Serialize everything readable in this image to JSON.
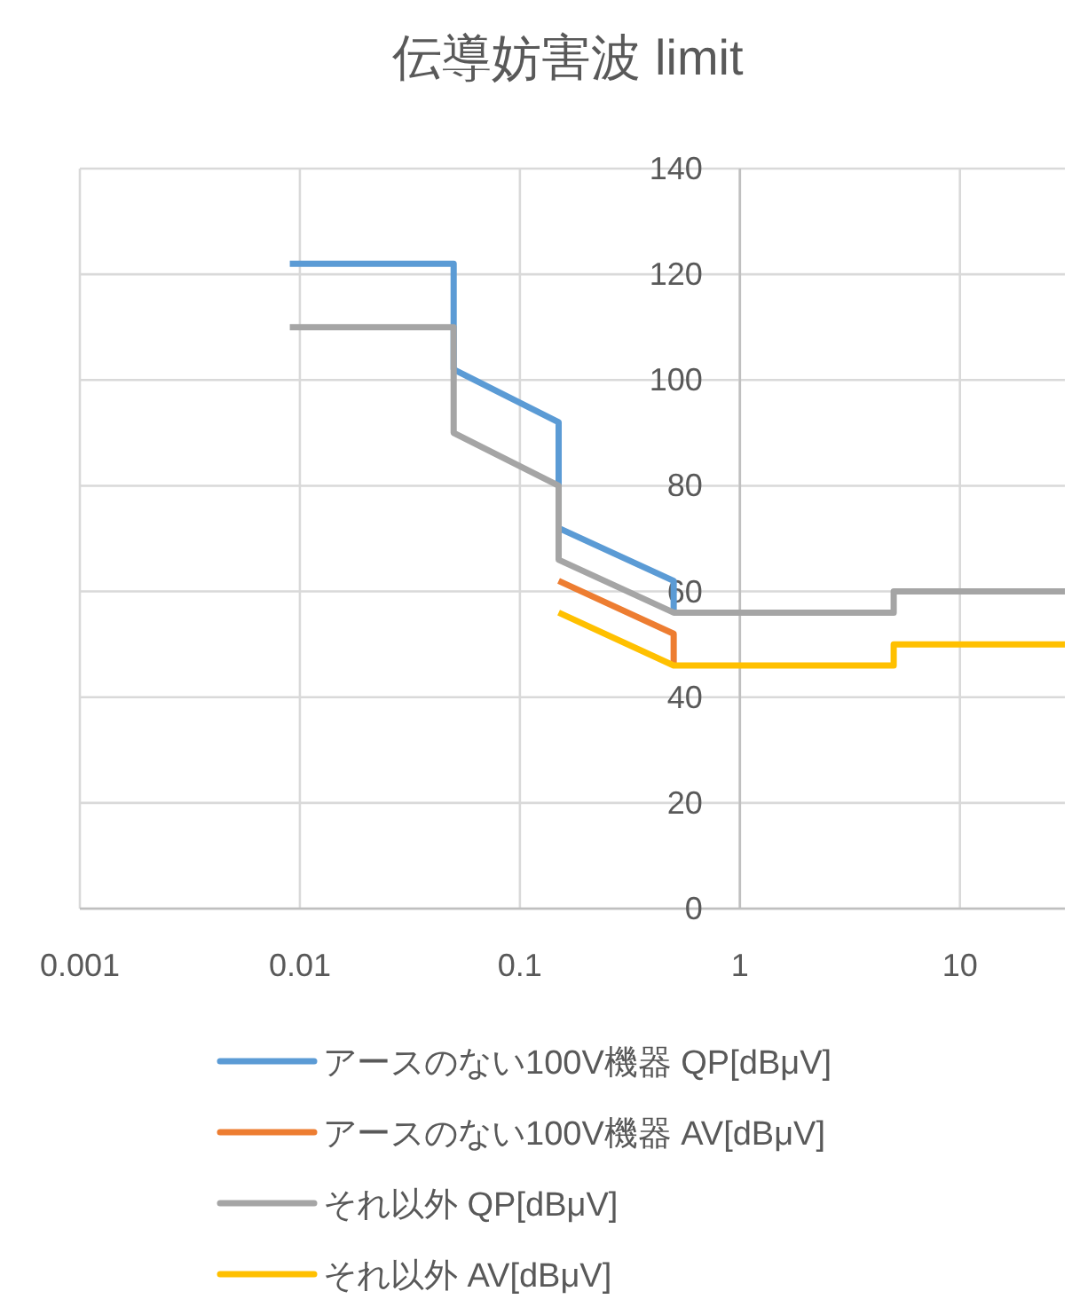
{
  "chart_data": {
    "type": "line",
    "title": "伝導妨害波 limit",
    "log": "x",
    "xlim": [
      0.001,
      30
    ],
    "xticks": [
      0.001,
      0.01,
      0.1,
      1,
      10
    ],
    "ylim": [
      0,
      140
    ],
    "yticks": [
      0,
      20,
      40,
      60,
      80,
      100,
      120,
      140
    ],
    "grid": true,
    "legend": "bottom",
    "marker": "none",
    "line_style": "solid",
    "series": [
      {
        "name": "アースのない100V機器 QP[dBμV]",
        "color": "#5b9bd5",
        "x": [
          0.009,
          0.05,
          0.05,
          0.15,
          0.15,
          0.5,
          0.5
        ],
        "values": [
          122,
          122,
          102,
          92,
          72,
          62,
          56
        ]
      },
      {
        "name": "アースのない100V機器 AV[dBμV]",
        "color": "#ed7d31",
        "x": [
          0.15,
          0.5,
          0.5
        ],
        "values": [
          62,
          52,
          46
        ]
      },
      {
        "name": "それ以外 QP[dBμV]",
        "color": "#a5a5a5",
        "x": [
          0.009,
          0.05,
          0.05,
          0.15,
          0.15,
          0.5,
          5,
          5,
          30
        ],
        "values": [
          110,
          110,
          90,
          80,
          66,
          56,
          56,
          60,
          60
        ]
      },
      {
        "name": "それ以外 AV[dBμV]",
        "color": "#ffc000",
        "x": [
          0.15,
          0.5,
          5,
          5,
          30
        ],
        "values": [
          56,
          46,
          46,
          50,
          50
        ]
      }
    ]
  }
}
